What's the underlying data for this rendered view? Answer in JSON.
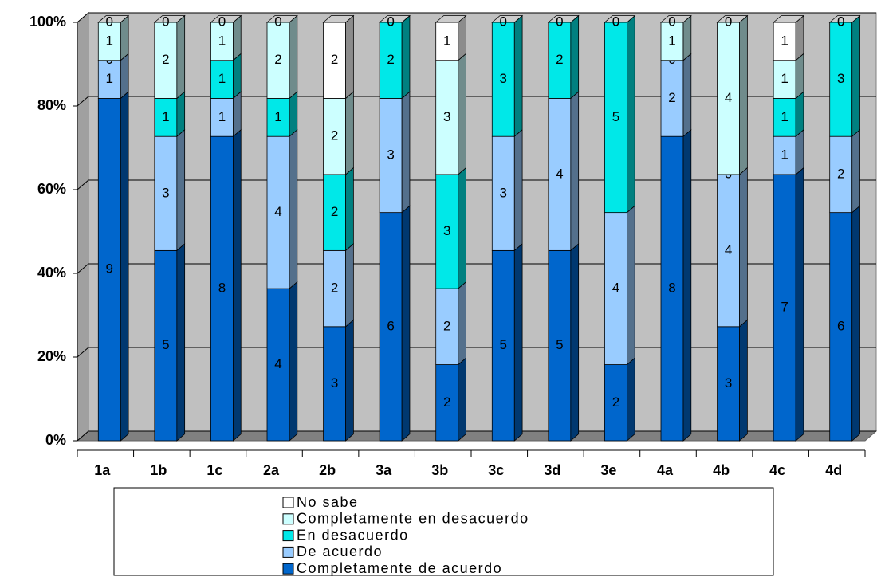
{
  "chart_data": {
    "type": "bar",
    "stacking": "percent",
    "categories": [
      "1a",
      "1b",
      "1c",
      "2a",
      "2b",
      "3a",
      "3b",
      "3c",
      "3d",
      "3e",
      "4a",
      "4b",
      "4c",
      "4d"
    ],
    "series": [
      {
        "name": "Completamente de acuerdo",
        "color": "#0066cc",
        "values": [
          9,
          5,
          8,
          4,
          3,
          6,
          2,
          5,
          5,
          2,
          8,
          3,
          7,
          6
        ]
      },
      {
        "name": "De acuerdo",
        "color": "#99ccff",
        "values": [
          1,
          3,
          1,
          4,
          2,
          3,
          2,
          3,
          4,
          4,
          2,
          4,
          1,
          2
        ]
      },
      {
        "name": "En desacuerdo",
        "color": "#00e8e8",
        "values": [
          0,
          1,
          1,
          1,
          2,
          2,
          3,
          3,
          2,
          5,
          0,
          0,
          1,
          3
        ]
      },
      {
        "name": "Completamente en desacuerdo",
        "color": "#ccffff",
        "values": [
          1,
          2,
          1,
          2,
          2,
          0,
          3,
          0,
          0,
          0,
          1,
          4,
          1,
          0
        ]
      },
      {
        "name": "No sabe",
        "color": "#ffffff",
        "values": [
          0,
          0,
          0,
          0,
          2,
          0,
          1,
          0,
          0,
          0,
          0,
          0,
          1,
          0
        ]
      }
    ],
    "ylim": [
      0,
      100
    ],
    "yticks": [
      {
        "value": 0,
        "label": "0%"
      },
      {
        "value": 20,
        "label": "20%"
      },
      {
        "value": 40,
        "label": "40%"
      },
      {
        "value": 60,
        "label": "60%"
      },
      {
        "value": 80,
        "label": "80%"
      },
      {
        "value": 100,
        "label": "100%"
      }
    ],
    "grid": true,
    "legend": "bottom"
  }
}
